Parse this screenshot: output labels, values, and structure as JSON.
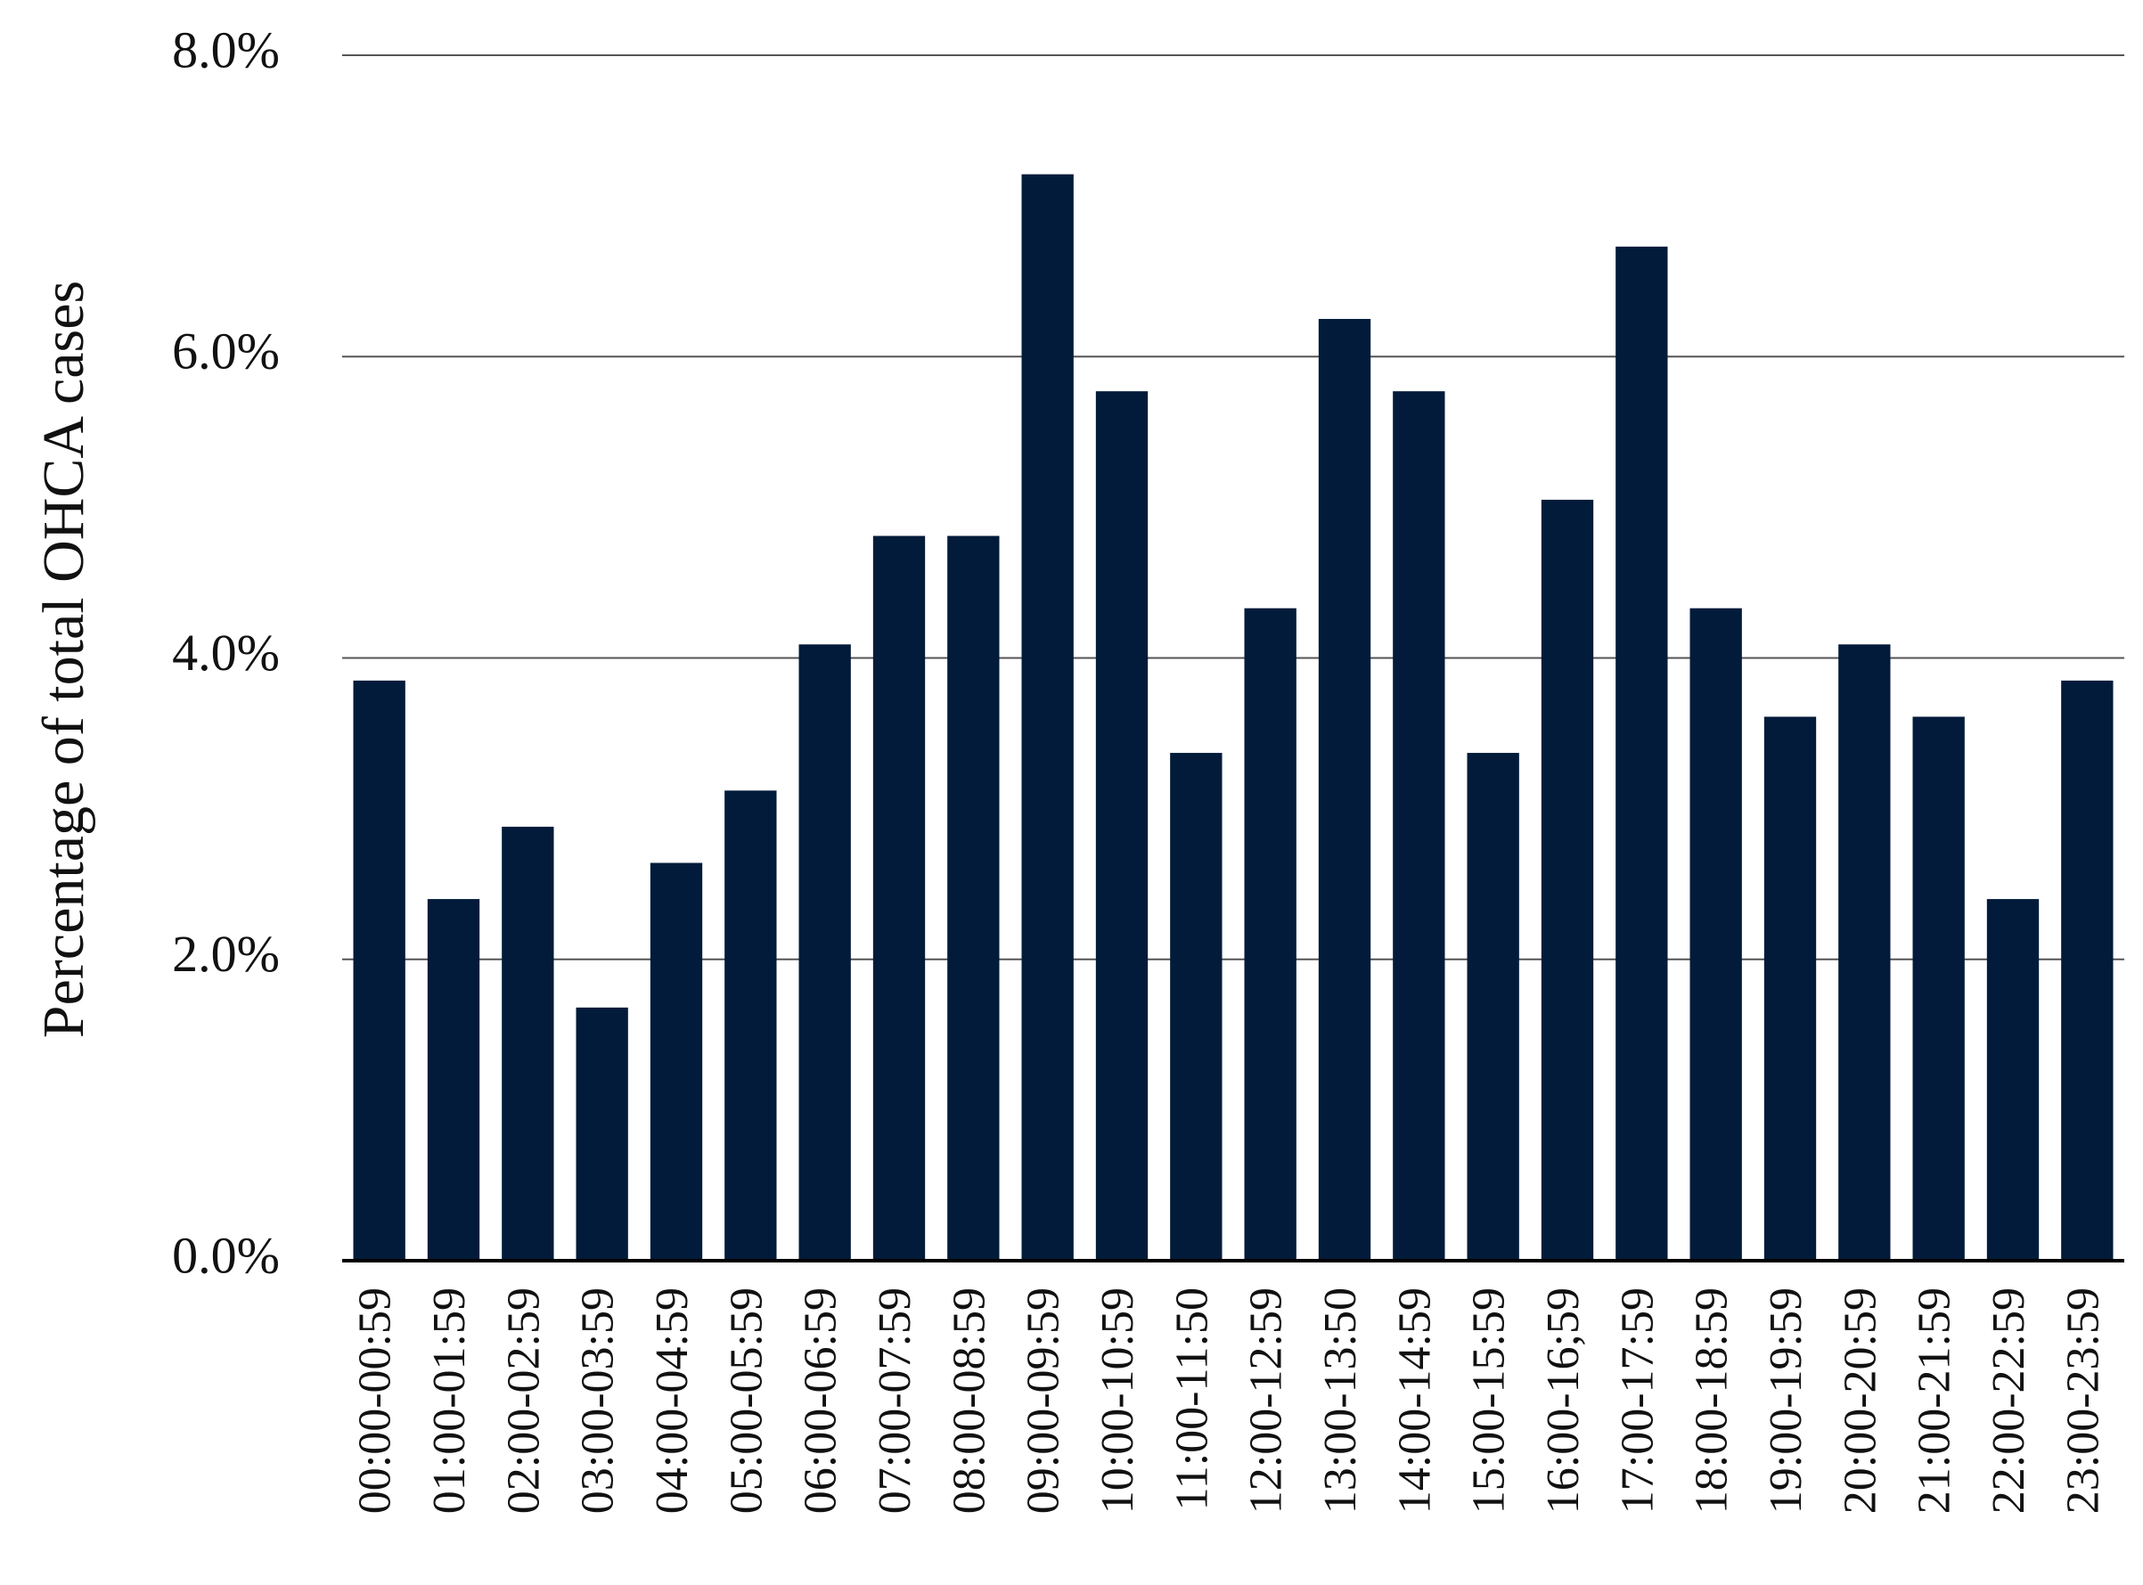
{
  "chart_data": {
    "type": "bar",
    "y_label": "Percentage of total OHCA cases",
    "categories": [
      "00:00-00:59",
      "01:00-01:59",
      "02:00-02:59",
      "03:00-03:59",
      "04:00-04:59",
      "05:00-05:59",
      "06:00-06:59",
      "07:00-07:59",
      "08:00-08:59",
      "09:00-09:59",
      "10:00-10:59",
      "11:00-11:50",
      "12:00-12:59",
      "13:00-13:50",
      "14:00-14:59",
      "15:00-15:59",
      "16:00-16;59",
      "17:00-17:59",
      "18:00-18:59",
      "19:00-19:59",
      "20:00-20:59",
      "21:00-21:59",
      "22:00-22:59",
      "23:00-23:59"
    ],
    "values": [
      3.85,
      2.4,
      2.88,
      1.68,
      2.64,
      3.12,
      4.09,
      4.81,
      4.81,
      7.21,
      5.77,
      3.37,
      4.33,
      6.25,
      5.77,
      3.37,
      5.05,
      6.73,
      4.33,
      3.61,
      4.09,
      3.61,
      2.4,
      3.85
    ],
    "color": "#021b3a",
    "ylim": [
      0,
      8
    ],
    "yticks": [
      {
        "value": 0,
        "label": "0.0%"
      },
      {
        "value": 2,
        "label": "2.0%"
      },
      {
        "value": 4,
        "label": "4.0%"
      },
      {
        "value": 6,
        "label": "6.0%"
      },
      {
        "value": 8,
        "label": "8.0%"
      }
    ],
    "grid": true
  }
}
